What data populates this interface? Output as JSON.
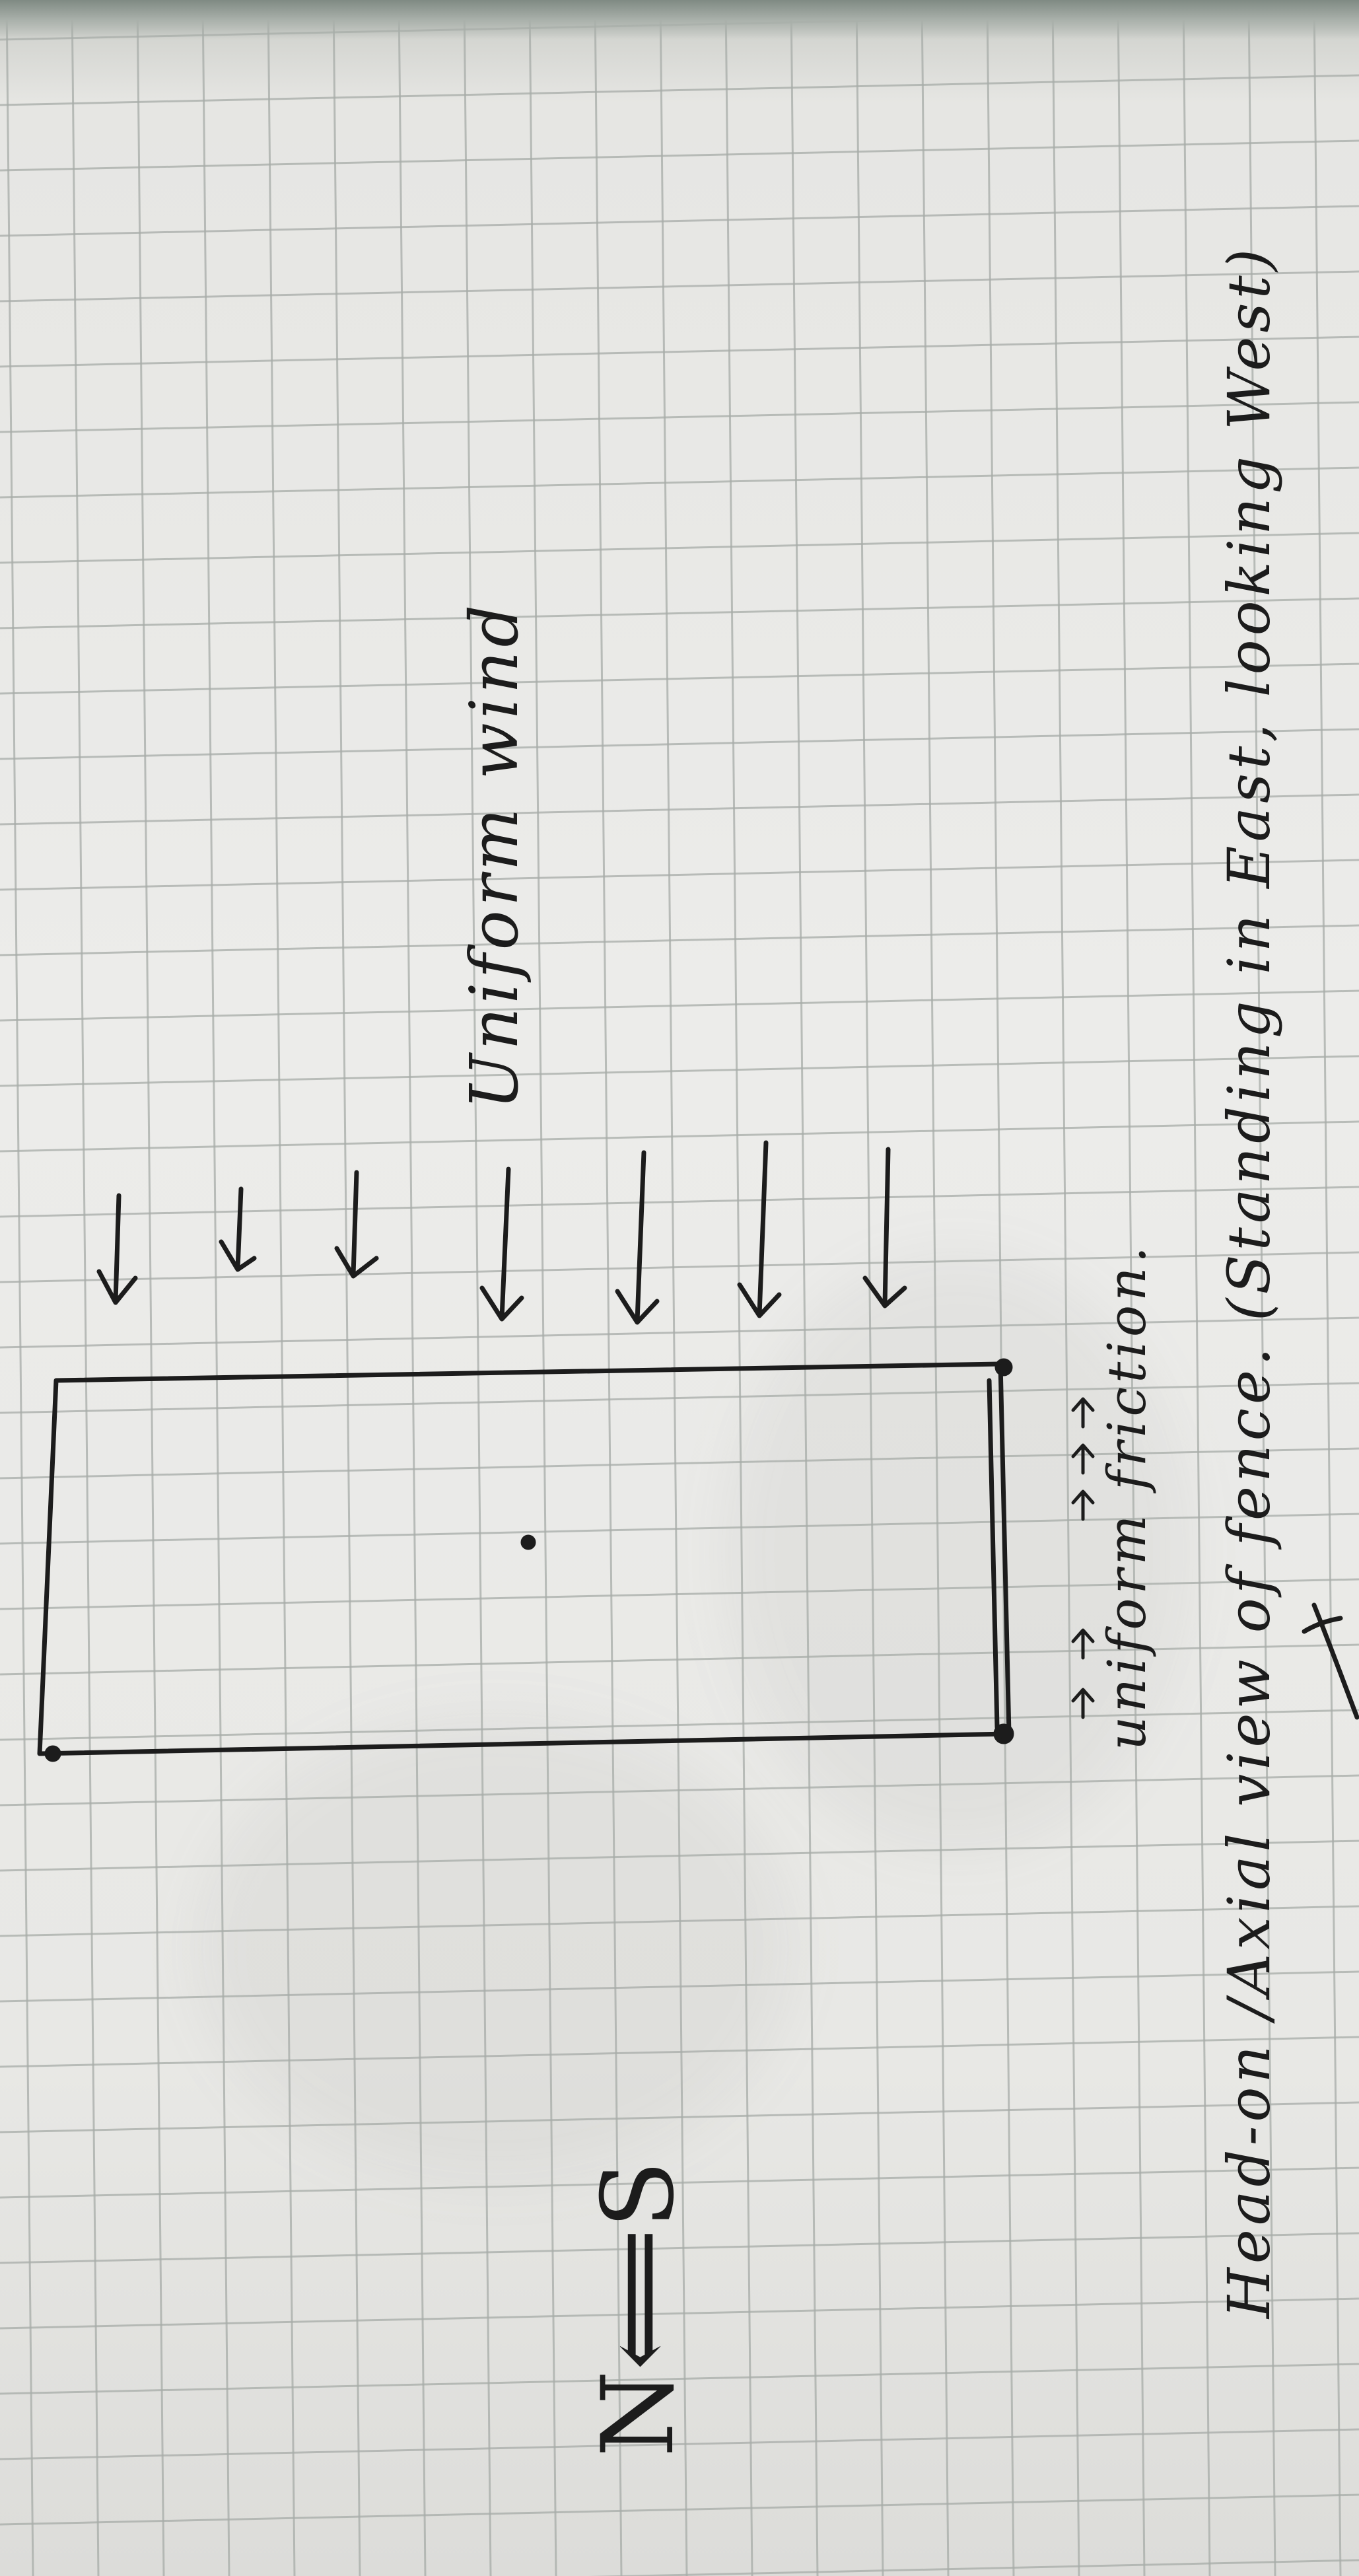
{
  "compass": "N⟸S",
  "wind_label": "Uniform wind",
  "friction_label": "uniform friction.",
  "caption": "Head-on /Axial view of fence. (Standing in East, looking West)"
}
